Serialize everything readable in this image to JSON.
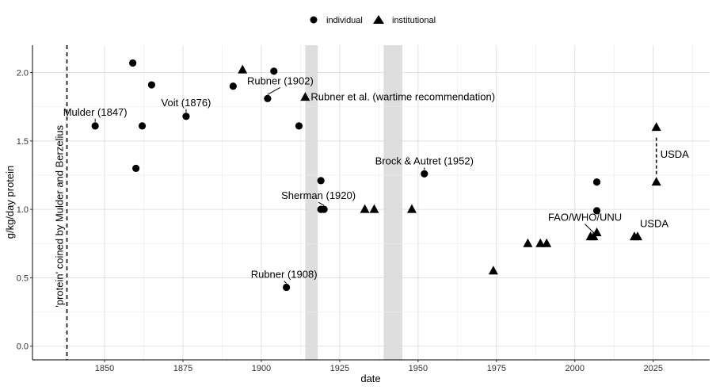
{
  "chart_data": {
    "type": "scatter",
    "xlabel": "date",
    "ylabel": "g/kg/day protein",
    "xlim": [
      1827,
      2043
    ],
    "ylim": [
      -0.1,
      2.2
    ],
    "x_ticks": [
      1850,
      1875,
      1900,
      1925,
      1950,
      1975,
      2000,
      2025
    ],
    "y_ticks": [
      0.0,
      0.5,
      1.0,
      1.5,
      2.0
    ],
    "y_tick_labels": [
      "0.0",
      "0.5",
      "1.0",
      "1.5",
      "2.0"
    ],
    "grid": true,
    "legend": {
      "position": "top",
      "entries": [
        {
          "label": "individual",
          "shape": "circle"
        },
        {
          "label": "institutional",
          "shape": "triangle"
        }
      ]
    },
    "shaded_periods": [
      [
        1914,
        1918
      ],
      [
        1939,
        1945
      ]
    ],
    "vline": {
      "x": 1838,
      "label": "'protein' coined by Mulder and Berzelius"
    },
    "series": [
      {
        "name": "individual",
        "points": [
          {
            "x": 1847,
            "y": 1.61
          },
          {
            "x": 1859,
            "y": 2.07
          },
          {
            "x": 1860,
            "y": 1.3
          },
          {
            "x": 1862,
            "y": 1.61
          },
          {
            "x": 1865,
            "y": 1.91
          },
          {
            "x": 1876,
            "y": 1.68
          },
          {
            "x": 1891,
            "y": 1.9
          },
          {
            "x": 1902,
            "y": 1.81
          },
          {
            "x": 1904,
            "y": 2.01
          },
          {
            "x": 1908,
            "y": 0.43
          },
          {
            "x": 1912,
            "y": 1.61
          },
          {
            "x": 1919,
            "y": 1.0
          },
          {
            "x": 1919,
            "y": 1.21
          },
          {
            "x": 1920,
            "y": 1.0
          },
          {
            "x": 1952,
            "y": 1.26
          },
          {
            "x": 2007,
            "y": 0.99
          },
          {
            "x": 2007,
            "y": 1.2
          }
        ]
      },
      {
        "name": "institutional",
        "points": [
          {
            "x": 1894,
            "y": 2.02
          },
          {
            "x": 1914,
            "y": 1.82
          },
          {
            "x": 1933,
            "y": 1.0
          },
          {
            "x": 1936,
            "y": 1.0
          },
          {
            "x": 1948,
            "y": 1.0
          },
          {
            "x": 1974,
            "y": 0.55
          },
          {
            "x": 1985,
            "y": 0.75
          },
          {
            "x": 1989,
            "y": 0.75
          },
          {
            "x": 1991,
            "y": 0.75
          },
          {
            "x": 2005,
            "y": 0.8
          },
          {
            "x": 2006,
            "y": 0.8
          },
          {
            "x": 2007,
            "y": 0.83
          },
          {
            "x": 2019,
            "y": 0.8
          },
          {
            "x": 2020,
            "y": 0.8
          },
          {
            "x": 2026,
            "y": 1.2
          },
          {
            "x": 2026,
            "y": 1.6
          }
        ]
      }
    ],
    "usda_range": {
      "x": 2026,
      "y_from": 1.2,
      "y_to": 1.6
    },
    "annotations": [
      {
        "text": "Mulder (1847)",
        "x": 1847,
        "y": 1.61
      },
      {
        "text": "Voit (1876)",
        "x": 1876,
        "y": 1.68
      },
      {
        "text": "Rubner (1902)",
        "x": 1902,
        "y": 1.81
      },
      {
        "text": "Rubner et al. (wartime recommendation)",
        "x": 1914,
        "y": 1.82
      },
      {
        "text": "Brock & Autret (1952)",
        "x": 1952,
        "y": 1.26
      },
      {
        "text": "Sherman (1920)",
        "x": 1920,
        "y": 1.0
      },
      {
        "text": "Rubner (1908)",
        "x": 1908,
        "y": 0.43
      },
      {
        "text": "FAO/WHO/UNU",
        "x": 2006,
        "y": 0.8
      },
      {
        "text": "USDA",
        "x": 2020,
        "y": 0.8
      },
      {
        "text": "USDA",
        "x": 2026,
        "y": 1.4
      }
    ]
  }
}
